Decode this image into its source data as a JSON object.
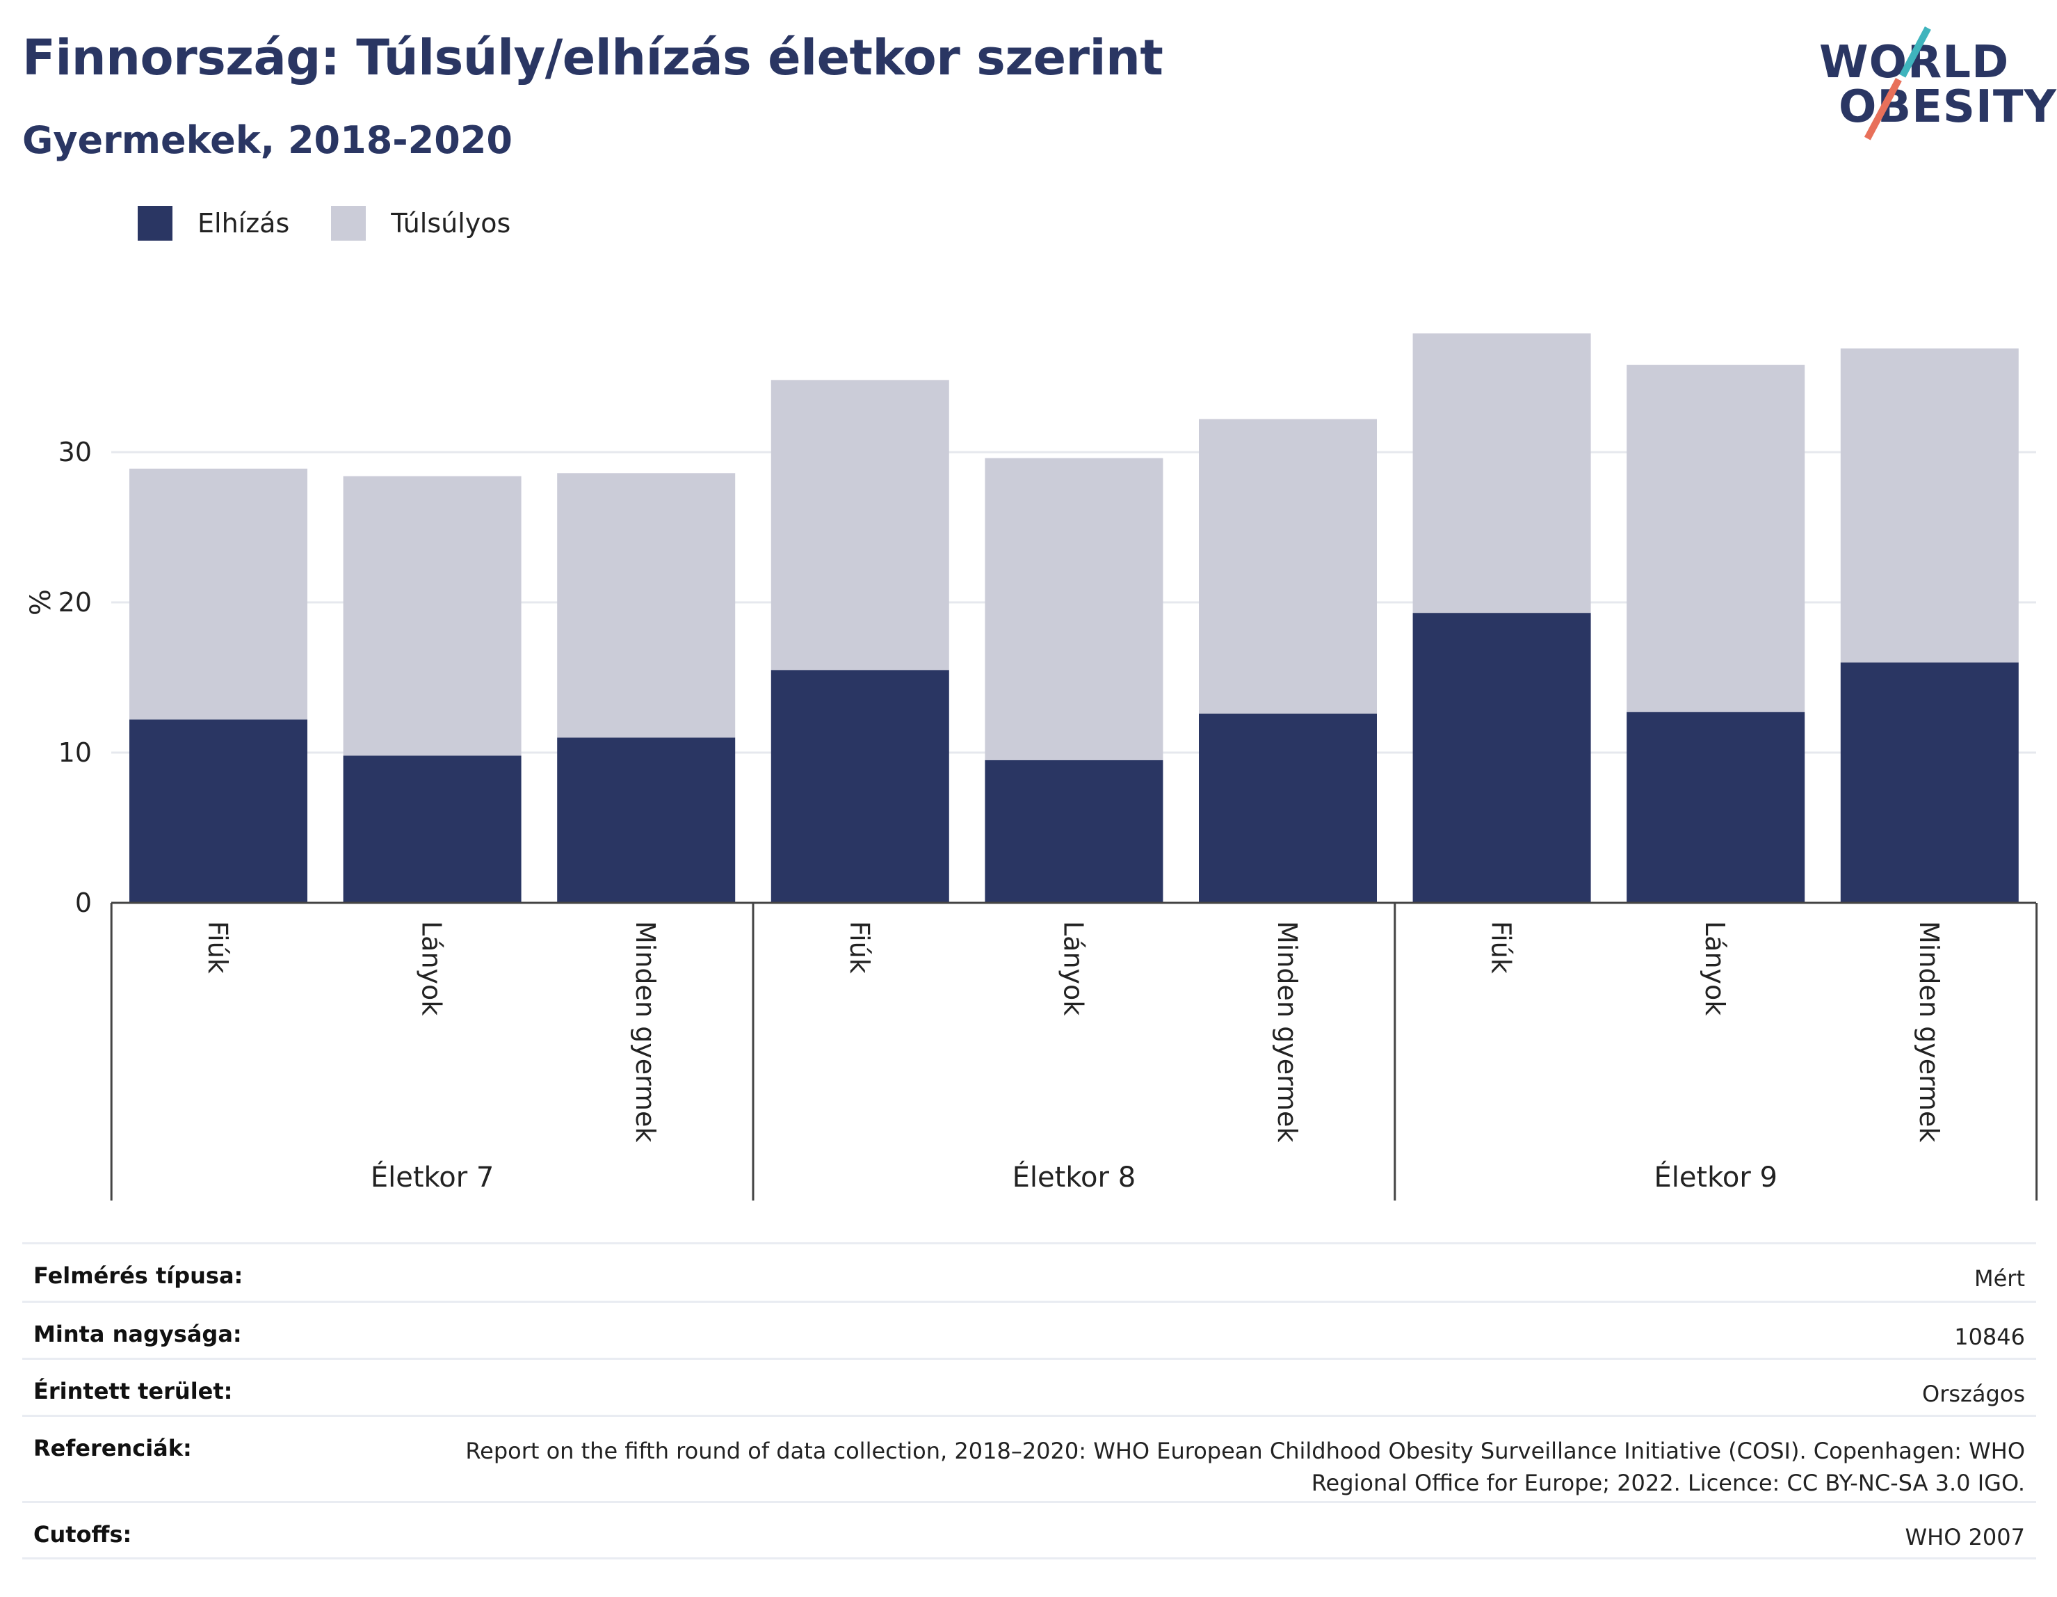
{
  "header": {
    "title": "Finnország: Túlsúly/elhízás életkor szerint",
    "subtitle": "Gyermekek, 2018-2020"
  },
  "logo": {
    "line1": "WORLD",
    "line2": "OBESITY",
    "colors": {
      "text": "#2a3663",
      "slash_top": "#3fb4bd",
      "slash_bottom": "#e8705a"
    }
  },
  "legend": [
    {
      "label": "Elhízás",
      "color": "#2a3663"
    },
    {
      "label": "Túlsúlyos",
      "color": "#cbccd8"
    }
  ],
  "chart_data": {
    "type": "bar",
    "stacked": true,
    "ylabel": "%",
    "xlabel": "",
    "ylim": [
      0,
      40
    ],
    "yticks": [
      0,
      10,
      20,
      30
    ],
    "grid": true,
    "legend_position": "top-left",
    "groups": [
      {
        "label": "Életkor 7",
        "categories": [
          "Fiúk",
          "Lányok",
          "Minden gyermek"
        ]
      },
      {
        "label": "Életkor 8",
        "categories": [
          "Fiúk",
          "Lányok",
          "Minden gyermek"
        ]
      },
      {
        "label": "Életkor 9",
        "categories": [
          "Fiúk",
          "Lányok",
          "Minden gyermek"
        ]
      }
    ],
    "series": [
      {
        "name": "Elhízás",
        "color": "#2a3663",
        "values": [
          12.2,
          9.8,
          11.0,
          15.5,
          9.5,
          12.6,
          19.3,
          12.7,
          16.0
        ]
      },
      {
        "name": "Túlsúlyos",
        "color": "#cbccd8",
        "values": [
          16.7,
          18.6,
          17.6,
          19.3,
          20.1,
          19.6,
          18.6,
          23.1,
          20.9
        ]
      }
    ]
  },
  "info": [
    {
      "label": "Felmérés típusa:",
      "value": "Mért"
    },
    {
      "label": "Minta nagysága:",
      "value": "10846"
    },
    {
      "label": "Érintett terület:",
      "value": "Országos"
    },
    {
      "label": "Referenciák:",
      "value": "Report on the fifth round of data collection, 2018–2020: WHO European Childhood Obesity Surveillance Initiative (COSI). Copenhagen: WHO Regional Office for Europe; 2022. Licence: CC BY-NC-SA 3.0 IGO."
    },
    {
      "label": "Cutoffs:",
      "value": "WHO 2007"
    }
  ]
}
